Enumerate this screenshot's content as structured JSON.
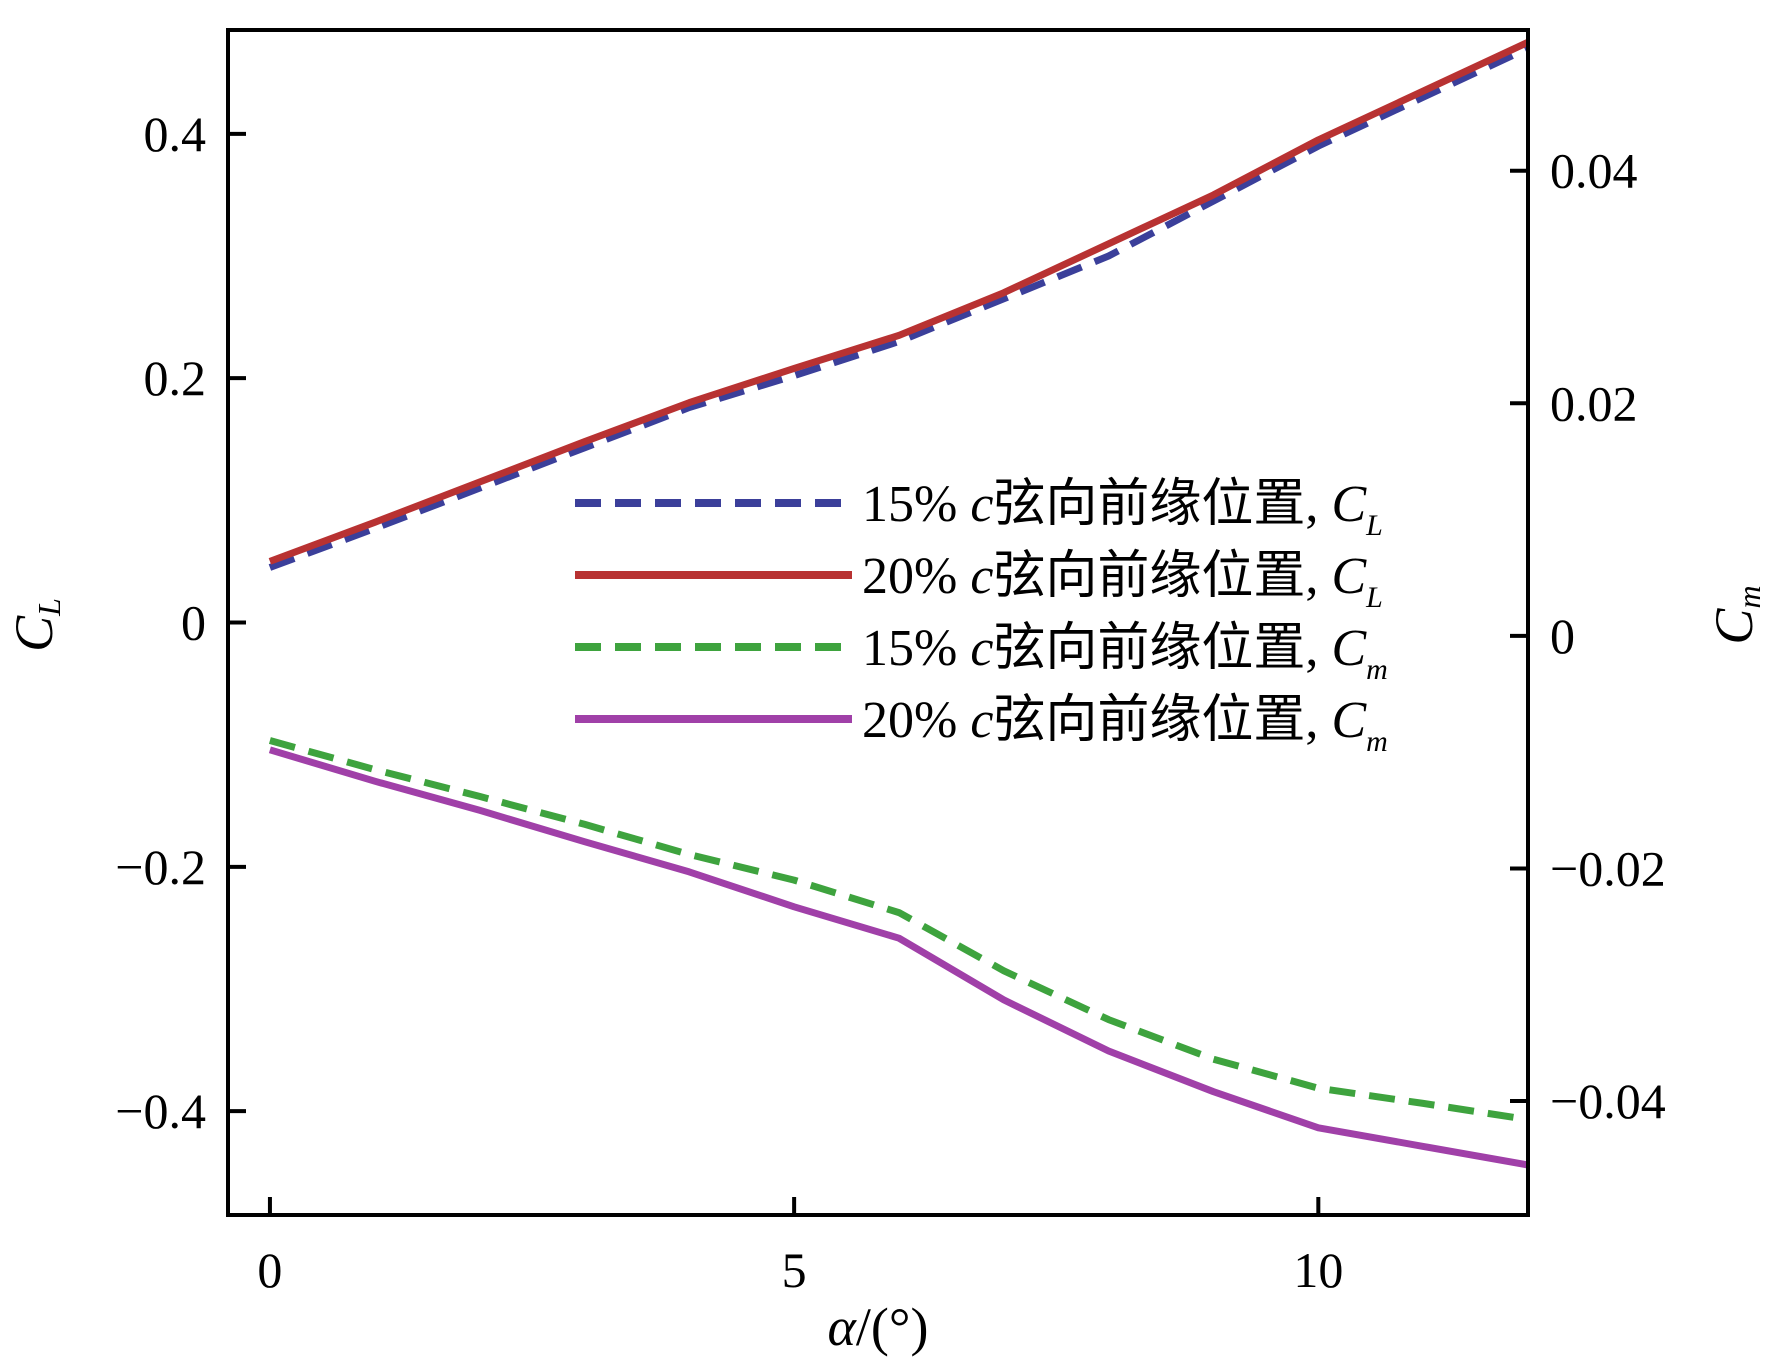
{
  "chart_data": {
    "type": "line",
    "x_axis": {
      "label_symbol": "α",
      "label_unit": "/(°)",
      "range": [
        -0.4,
        12.0
      ],
      "ticks": [
        0,
        5,
        10
      ],
      "tick_labels": [
        "0",
        "5",
        "10"
      ]
    },
    "y_left_axis": {
      "label_symbol": "C",
      "label_sub": "L",
      "range": [
        -0.485,
        0.485
      ],
      "ticks": [
        0.4,
        0.2,
        0,
        -0.2,
        -0.4
      ],
      "tick_labels": [
        "0.4",
        "0.2",
        "0",
        "−0.2",
        "−0.4"
      ]
    },
    "y_right_axis": {
      "label_symbol": "C",
      "label_sub": "m",
      "range": [
        -0.0498,
        0.0521
      ],
      "ticks": [
        0.04,
        0.02,
        0,
        -0.02,
        -0.04
      ],
      "tick_labels": [
        "0.04",
        "0.02",
        "0",
        "−0.02",
        "−0.04"
      ]
    },
    "grid": false,
    "legend_position": "center-right",
    "series": [
      {
        "axis": "left",
        "style": "dashed",
        "color": "#3b3f9a",
        "legend_prefix": "15% ",
        "legend_c": "c",
        "legend_mid": "弦向前缘位置, ",
        "legend_sym": "C",
        "legend_sub": "L",
        "x": [
          0,
          1,
          2,
          3,
          4,
          5,
          6,
          7,
          8,
          9,
          10,
          11,
          12
        ],
        "y": [
          0.045,
          0.077,
          0.11,
          0.143,
          0.176,
          0.202,
          0.23,
          0.265,
          0.3,
          0.345,
          0.39,
          0.43,
          0.47
        ]
      },
      {
        "axis": "left",
        "style": "solid",
        "color": "#b83232",
        "legend_prefix": "20% ",
        "legend_c": "c",
        "legend_mid": "弦向前缘位置, ",
        "legend_sym": "C",
        "legend_sub": "L",
        "x": [
          0,
          1,
          2,
          3,
          4,
          5,
          6,
          7,
          8,
          9,
          10,
          11,
          12
        ],
        "y": [
          0.05,
          0.082,
          0.115,
          0.148,
          0.18,
          0.208,
          0.235,
          0.27,
          0.31,
          0.35,
          0.395,
          0.435,
          0.475
        ]
      },
      {
        "axis": "right",
        "style": "dashed",
        "color": "#3ea33e",
        "legend_prefix": "15% ",
        "legend_c": "c",
        "legend_mid": "弦向前缘位置, ",
        "legend_sym": "C",
        "legend_sub": "m",
        "x": [
          0,
          1,
          2,
          3,
          4,
          5,
          6,
          7,
          8,
          9,
          10,
          11,
          12
        ],
        "y": [
          -0.009,
          -0.0115,
          -0.0138,
          -0.0162,
          -0.0188,
          -0.021,
          -0.0238,
          -0.0288,
          -0.033,
          -0.0364,
          -0.0389,
          -0.0402,
          -0.0416
        ]
      },
      {
        "axis": "right",
        "style": "solid",
        "color": "#a040a8",
        "legend_prefix": "20% ",
        "legend_c": "c",
        "legend_mid": "弦向前缘位置, ",
        "legend_sym": "C",
        "legend_sub": "m",
        "x": [
          0,
          1,
          2,
          3,
          4,
          5,
          6,
          7,
          8,
          9,
          10,
          11,
          12
        ],
        "y": [
          -0.0098,
          -0.0125,
          -0.015,
          -0.0177,
          -0.0203,
          -0.0233,
          -0.026,
          -0.0313,
          -0.0357,
          -0.0392,
          -0.0423,
          -0.0439,
          -0.0455
        ]
      }
    ]
  }
}
